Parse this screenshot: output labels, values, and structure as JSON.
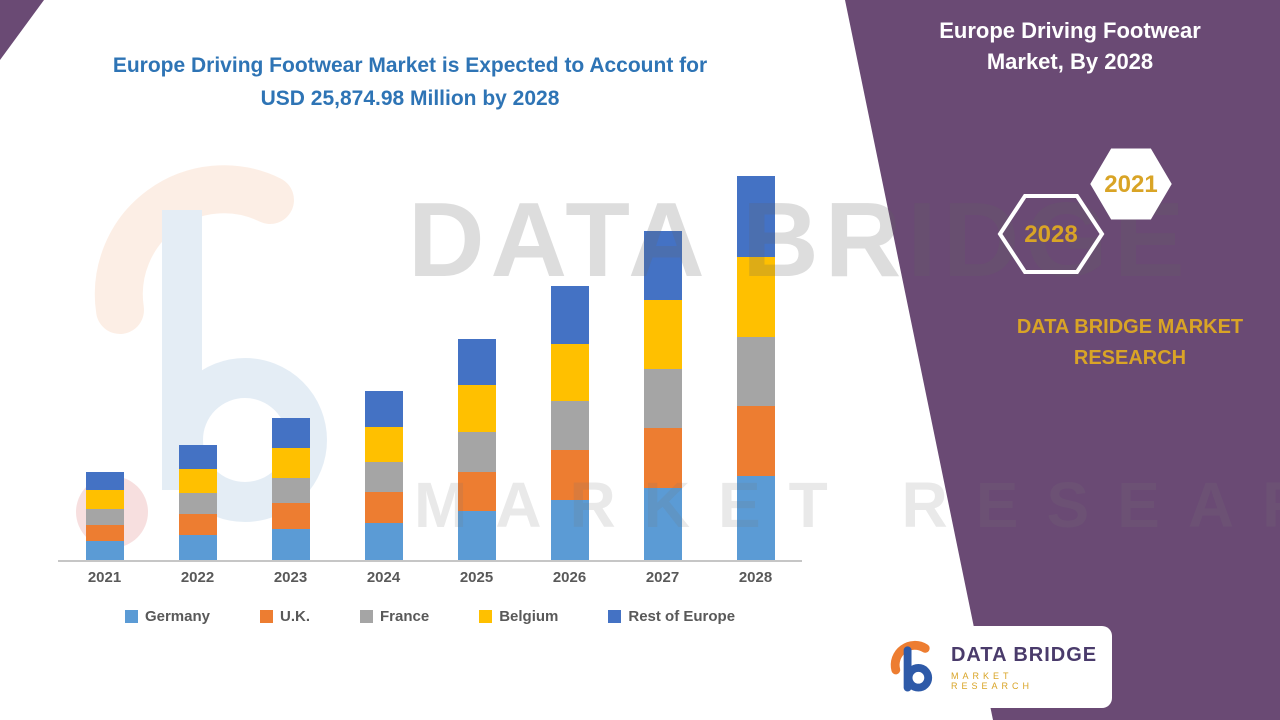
{
  "slide": {
    "title_line1": "Europe Driving Footwear Market is Expected to Account for",
    "title_line2": "USD 25,874.98 Million by 2028",
    "title_color": "#2e74b5"
  },
  "panel": {
    "heading_line1": "Europe Driving Footwear",
    "heading_line2": "Market, By 2028",
    "hex_front_year": "2028",
    "hex_back_year": "2021",
    "brand_line1": "DATA BRIDGE MARKET",
    "brand_line2": "RESEARCH",
    "bg_color": "#6a4a74",
    "gold_color": "#d9a426"
  },
  "watermark": {
    "line1": "DATA BRIDGE",
    "line2": "MARKET RESEARCH"
  },
  "logo": {
    "name": "DATA BRIDGE",
    "tagline": "MARKET RESEARCH"
  },
  "chart_data": {
    "type": "bar",
    "stacked": true,
    "unit": "USD Million",
    "categories": [
      "2021",
      "2022",
      "2023",
      "2024",
      "2025",
      "2026",
      "2027",
      "2028"
    ],
    "series": [
      {
        "name": "Germany",
        "color": "#5b9bd5",
        "values": [
          1300,
          1700,
          2100,
          2500,
          3280,
          4070,
          4870,
          5690
        ]
      },
      {
        "name": "U.K.",
        "color": "#ed7d31",
        "values": [
          1060,
          1390,
          1720,
          2050,
          2680,
          3330,
          3990,
          4660
        ]
      },
      {
        "name": "France",
        "color": "#a5a5a5",
        "values": [
          1060,
          1390,
          1720,
          2050,
          2680,
          3330,
          3990,
          4660
        ]
      },
      {
        "name": "Belgium",
        "color": "#ffc000",
        "values": [
          1240,
          1620,
          2010,
          2390,
          3130,
          3880,
          4650,
          5430
        ]
      },
      {
        "name": "Rest of Europe",
        "color": "#4472c4",
        "values": [
          1240,
          1620,
          2010,
          2390,
          3130,
          3880,
          4650,
          5435
        ]
      }
    ],
    "totals": [
      5900,
      7720,
      9560,
      11380,
      14900,
      18490,
      22150,
      25875
    ],
    "ylim": [
      0,
      25875
    ],
    "grid": false,
    "legend_position": "bottom",
    "annotation": "2028 total shown in title: USD 25,874.98 Million"
  }
}
